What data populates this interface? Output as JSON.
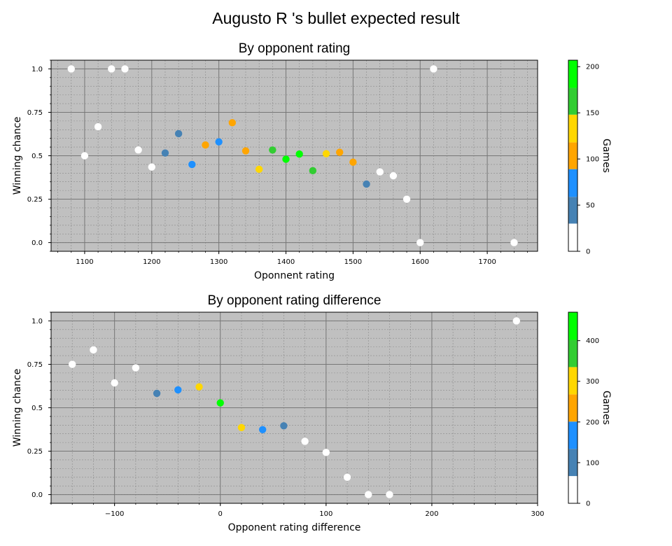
{
  "suptitle": "Augusto R 's bullet expected result",
  "chart_data": [
    {
      "type": "scatter",
      "title": "By opponent rating",
      "xlabel": "Oponnent rating",
      "ylabel": "Winning chance",
      "xlim": [
        1050,
        1775
      ],
      "ylim": [
        -0.05,
        1.05
      ],
      "xticks": [
        1100,
        1200,
        1300,
        1400,
        1500,
        1600,
        1700
      ],
      "yticks": [
        0.0,
        0.25,
        0.5,
        0.75,
        1.0
      ],
      "ytick_labels": [
        "0.0",
        "0.25",
        "0.5",
        "0.75",
        "1.0"
      ],
      "grid": true,
      "background": "#c0c0c0",
      "colorbar": {
        "label": "Games",
        "min": 0,
        "max": 207,
        "ticks": [
          0,
          50,
          100,
          150,
          200
        ],
        "bands": [
          {
            "from": 0,
            "to": 30,
            "color": "#ffffff"
          },
          {
            "from": 30,
            "to": 59,
            "color": "#4682b4"
          },
          {
            "from": 59,
            "to": 89,
            "color": "#1e90ff"
          },
          {
            "from": 89,
            "to": 118,
            "color": "#ffa500"
          },
          {
            "from": 118,
            "to": 148,
            "color": "#ffd700"
          },
          {
            "from": 148,
            "to": 177,
            "color": "#32cd32"
          },
          {
            "from": 177,
            "to": 207,
            "color": "#00ff00"
          }
        ]
      },
      "points": [
        {
          "x": 1080,
          "y": 1.0,
          "color": "#ffffff"
        },
        {
          "x": 1100,
          "y": 0.5,
          "color": "#ffffff"
        },
        {
          "x": 1120,
          "y": 0.667,
          "color": "#ffffff"
        },
        {
          "x": 1140,
          "y": 1.0,
          "color": "#ffffff"
        },
        {
          "x": 1160,
          "y": 1.0,
          "color": "#ffffff"
        },
        {
          "x": 1180,
          "y": 0.533,
          "color": "#ffffff"
        },
        {
          "x": 1200,
          "y": 0.435,
          "color": "#ffffff"
        },
        {
          "x": 1220,
          "y": 0.516,
          "color": "#4682b4"
        },
        {
          "x": 1240,
          "y": 0.627,
          "color": "#4682b4"
        },
        {
          "x": 1260,
          "y": 0.45,
          "color": "#1e90ff"
        },
        {
          "x": 1280,
          "y": 0.562,
          "color": "#ffa500"
        },
        {
          "x": 1300,
          "y": 0.58,
          "color": "#1e90ff"
        },
        {
          "x": 1320,
          "y": 0.69,
          "color": "#ffa500"
        },
        {
          "x": 1340,
          "y": 0.528,
          "color": "#ffa500"
        },
        {
          "x": 1360,
          "y": 0.422,
          "color": "#ffd700"
        },
        {
          "x": 1380,
          "y": 0.533,
          "color": "#32cd32"
        },
        {
          "x": 1400,
          "y": 0.48,
          "color": "#00ff00"
        },
        {
          "x": 1420,
          "y": 0.51,
          "color": "#00ff00"
        },
        {
          "x": 1440,
          "y": 0.414,
          "color": "#32cd32"
        },
        {
          "x": 1460,
          "y": 0.512,
          "color": "#ffd700"
        },
        {
          "x": 1480,
          "y": 0.52,
          "color": "#ffa500"
        },
        {
          "x": 1500,
          "y": 0.463,
          "color": "#ffa500"
        },
        {
          "x": 1520,
          "y": 0.337,
          "color": "#4682b4"
        },
        {
          "x": 1540,
          "y": 0.407,
          "color": "#ffffff"
        },
        {
          "x": 1560,
          "y": 0.385,
          "color": "#ffffff"
        },
        {
          "x": 1580,
          "y": 0.25,
          "color": "#ffffff"
        },
        {
          "x": 1600,
          "y": 0.0,
          "color": "#ffffff"
        },
        {
          "x": 1620,
          "y": 1.0,
          "color": "#ffffff"
        },
        {
          "x": 1740,
          "y": 0.0,
          "color": "#ffffff"
        }
      ]
    },
    {
      "type": "scatter",
      "title": "By opponent rating difference",
      "xlabel": "Opponent rating difference",
      "ylabel": "Winning chance",
      "xlim": [
        -160,
        300
      ],
      "ylim": [
        -0.05,
        1.05
      ],
      "xticks": [
        -100,
        0,
        100,
        200,
        300
      ],
      "xtick_labels": [
        "−100",
        "0",
        "100",
        "200",
        "300"
      ],
      "yticks": [
        0.0,
        0.25,
        0.5,
        0.75,
        1.0
      ],
      "ytick_labels": [
        "0.0",
        "0.25",
        "0.5",
        "0.75",
        "1.0"
      ],
      "grid": true,
      "background": "#c0c0c0",
      "colorbar": {
        "label": "Games",
        "min": 0,
        "max": 470,
        "ticks": [
          0,
          100,
          200,
          300,
          400
        ],
        "bands": [
          {
            "from": 0,
            "to": 67,
            "color": "#ffffff"
          },
          {
            "from": 67,
            "to": 134,
            "color": "#4682b4"
          },
          {
            "from": 134,
            "to": 201,
            "color": "#1e90ff"
          },
          {
            "from": 201,
            "to": 268,
            "color": "#ffa500"
          },
          {
            "from": 268,
            "to": 335,
            "color": "#ffd700"
          },
          {
            "from": 335,
            "to": 402,
            "color": "#32cd32"
          },
          {
            "from": 402,
            "to": 470,
            "color": "#00ff00"
          }
        ]
      },
      "points": [
        {
          "x": -140,
          "y": 0.75,
          "color": "#ffffff"
        },
        {
          "x": -120,
          "y": 0.833,
          "color": "#ffffff"
        },
        {
          "x": -100,
          "y": 0.643,
          "color": "#ffffff"
        },
        {
          "x": -80,
          "y": 0.73,
          "color": "#ffffff"
        },
        {
          "x": -60,
          "y": 0.583,
          "color": "#4682b4"
        },
        {
          "x": -40,
          "y": 0.603,
          "color": "#1e90ff"
        },
        {
          "x": -20,
          "y": 0.62,
          "color": "#ffd700"
        },
        {
          "x": 0,
          "y": 0.528,
          "color": "#00ff00"
        },
        {
          "x": 20,
          "y": 0.386,
          "color": "#ffd700"
        },
        {
          "x": 40,
          "y": 0.374,
          "color": "#1e90ff"
        },
        {
          "x": 60,
          "y": 0.396,
          "color": "#4682b4"
        },
        {
          "x": 80,
          "y": 0.307,
          "color": "#ffffff"
        },
        {
          "x": 100,
          "y": 0.243,
          "color": "#ffffff"
        },
        {
          "x": 120,
          "y": 0.1,
          "color": "#ffffff"
        },
        {
          "x": 140,
          "y": 0.0,
          "color": "#ffffff"
        },
        {
          "x": 160,
          "y": 0.0,
          "color": "#ffffff"
        },
        {
          "x": 280,
          "y": 1.0,
          "color": "#ffffff"
        }
      ]
    }
  ]
}
